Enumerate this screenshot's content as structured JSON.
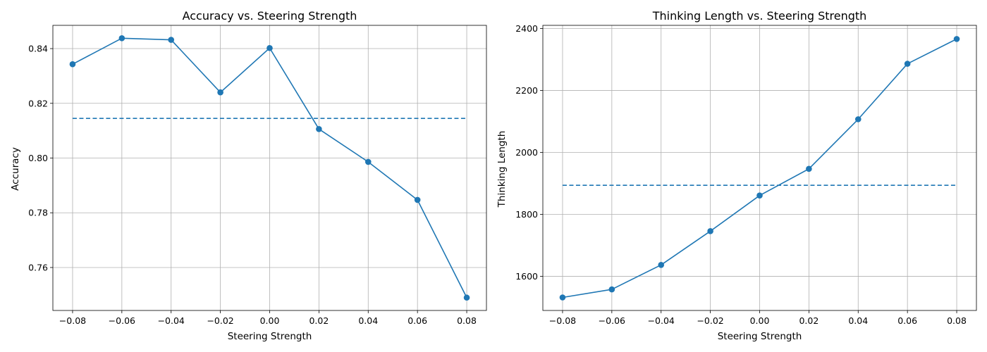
{
  "colors": {
    "series": "#1f77b4",
    "grid": "#b0b0b0",
    "axis": "#000000"
  },
  "chart_data": [
    {
      "type": "line",
      "title": "Accuracy vs. Steering Strength",
      "xlabel": "Steering Strength",
      "ylabel": "Accuracy",
      "x": [
        -0.08,
        -0.06,
        -0.04,
        -0.02,
        0.0,
        0.02,
        0.04,
        0.06,
        0.08
      ],
      "series": [
        {
          "values": [
            0.8343,
            0.8438,
            0.8432,
            0.824,
            0.8402,
            0.8106,
            0.7986,
            0.7847,
            0.749
          ],
          "style": "solid",
          "marker": "circle"
        }
      ],
      "reference_line": {
        "value": 0.8145,
        "style": "dashed"
      },
      "xlim": [
        -0.088,
        0.088
      ],
      "ylim": [
        0.7443,
        0.8485
      ],
      "xticks": [
        -0.08,
        -0.06,
        -0.04,
        -0.02,
        0.0,
        0.02,
        0.04,
        0.06,
        0.08
      ],
      "xtick_labels": [
        "−0.08",
        "−0.06",
        "−0.04",
        "−0.02",
        "0.00",
        "0.02",
        "0.04",
        "0.06",
        "0.08"
      ],
      "yticks": [
        0.76,
        0.78,
        0.8,
        0.82,
        0.84
      ],
      "ytick_labels": [
        "0.76",
        "0.78",
        "0.80",
        "0.82",
        "0.84"
      ],
      "grid": true
    },
    {
      "type": "line",
      "title": "Thinking Length vs. Steering Strength",
      "xlabel": "Steering Strength",
      "ylabel": "Thinking Length",
      "x": [
        -0.08,
        -0.06,
        -0.04,
        -0.02,
        0.0,
        0.02,
        0.04,
        0.06,
        0.08
      ],
      "series": [
        {
          "values": [
            1532,
            1558,
            1637,
            1746,
            1861,
            1947,
            2107,
            2286,
            2366
          ],
          "style": "solid",
          "marker": "circle"
        }
      ],
      "reference_line": {
        "value": 1894,
        "style": "dashed"
      },
      "xlim": [
        -0.088,
        0.088
      ],
      "ylim": [
        1490,
        2410
      ],
      "xticks": [
        -0.08,
        -0.06,
        -0.04,
        -0.02,
        0.0,
        0.02,
        0.04,
        0.06,
        0.08
      ],
      "xtick_labels": [
        "−0.08",
        "−0.06",
        "−0.04",
        "−0.02",
        "0.00",
        "0.02",
        "0.04",
        "0.06",
        "0.08"
      ],
      "yticks": [
        1600,
        1800,
        2000,
        2200,
        2400
      ],
      "ytick_labels": [
        "1600",
        "1800",
        "2000",
        "2200",
        "2400"
      ],
      "grid": true
    }
  ]
}
